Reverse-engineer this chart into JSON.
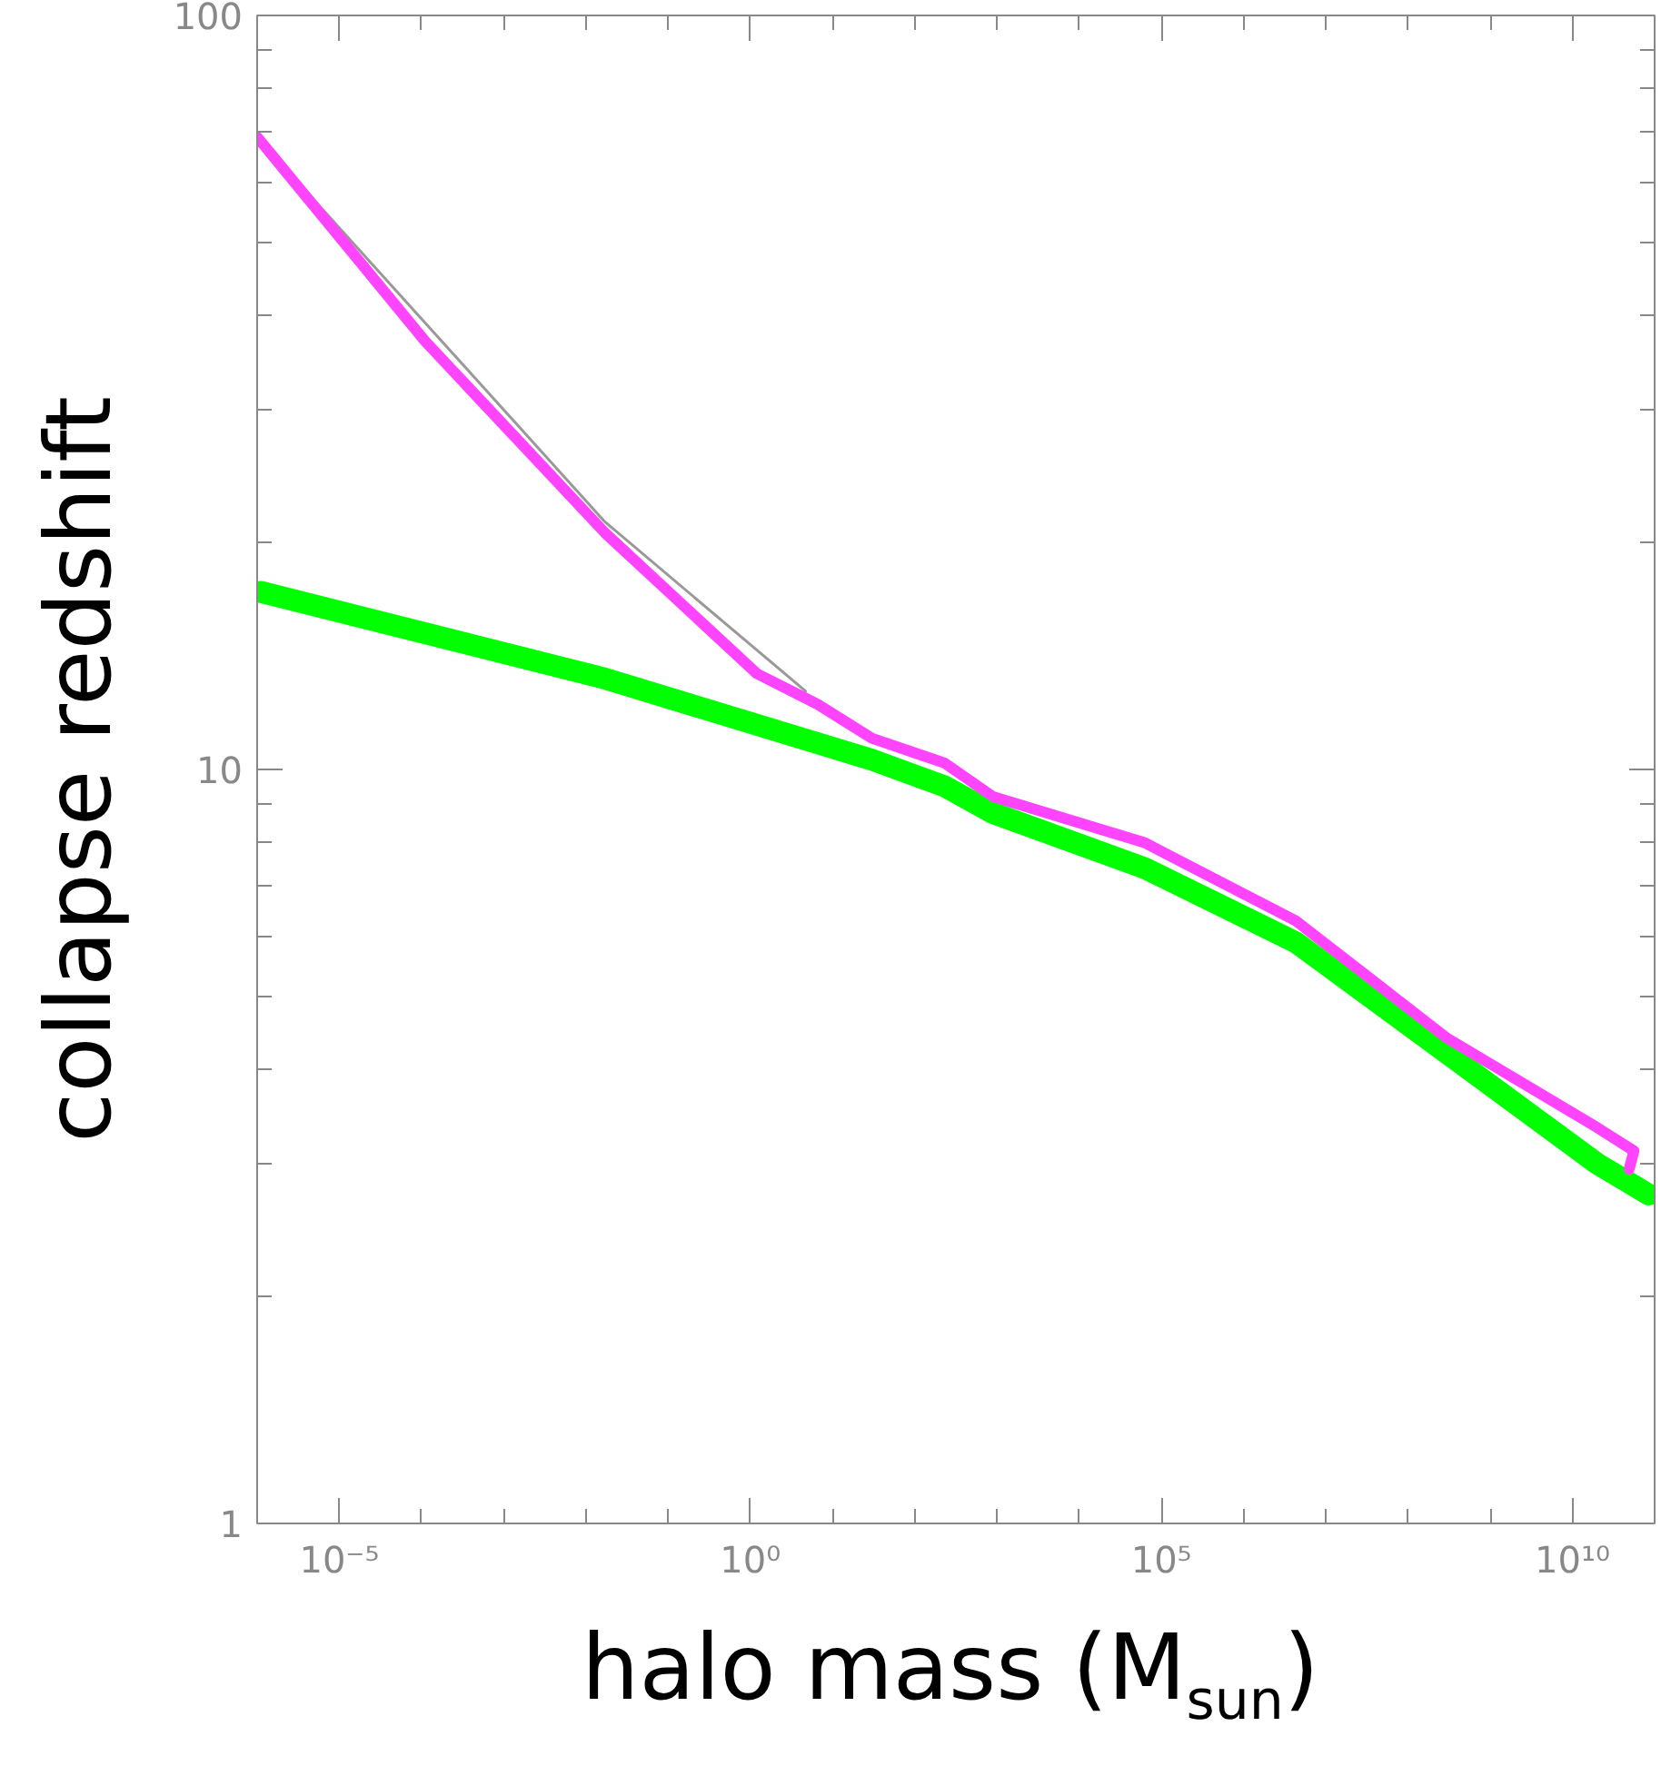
{
  "chart_data": {
    "type": "line",
    "xlabel": "halo mass (M$_{sun}$)",
    "ylabel": "collapse redshift",
    "log": "xy",
    "xlim": [
      1e-06,
      100000000000.0
    ],
    "ylim": [
      1,
      100
    ],
    "xticks": [
      {
        "value": 1e-06,
        "label": null
      },
      {
        "value": 1e-05,
        "label": "10⁻⁵"
      },
      {
        "value": 0.0001,
        "label": null
      },
      {
        "value": 0.001,
        "label": null
      },
      {
        "value": 0.01,
        "label": null
      },
      {
        "value": 0.1,
        "label": null
      },
      {
        "value": 1,
        "label": "10⁰"
      },
      {
        "value": 10,
        "label": null
      },
      {
        "value": 100,
        "label": null
      },
      {
        "value": 1000,
        "label": null
      },
      {
        "value": 10000,
        "label": null
      },
      {
        "value": 100000,
        "label": "10⁵"
      },
      {
        "value": 1000000.0,
        "label": null
      },
      {
        "value": 10000000.0,
        "label": null
      },
      {
        "value": 100000000.0,
        "label": null
      },
      {
        "value": 1000000000.0,
        "label": null
      },
      {
        "value": 10000000000.0,
        "label": "10¹⁰"
      },
      {
        "value": 100000000000.0,
        "label": null
      }
    ],
    "yticks": [
      1,
      {
        "value": 2,
        "label": null
      },
      {
        "value": 3,
        "label": null
      },
      {
        "value": 4,
        "label": null
      },
      {
        "value": 5,
        "label": null
      },
      {
        "value": 6,
        "label": null
      },
      {
        "value": 7,
        "label": null
      },
      {
        "value": 8,
        "label": null
      },
      {
        "value": 9,
        "label": null
      },
      10,
      {
        "value": 20,
        "label": null
      },
      {
        "value": 30,
        "label": null
      },
      {
        "value": 40,
        "label": null
      },
      {
        "value": 50,
        "label": null
      },
      {
        "value": 60,
        "label": null
      },
      {
        "value": 70,
        "label": null
      },
      {
        "value": 80,
        "label": null
      },
      {
        "value": 90,
        "label": null
      },
      100
    ],
    "grid": false,
    "marker": "none",
    "line_style": "solid",
    "series": [
      {
        "color": "#999999",
        "x": [
          1e-06,
          0.017,
          4.7
        ],
        "values": [
          69,
          21.3,
          12.7
        ]
      },
      {
        "color": "#00ff00",
        "x": [
          1.1e-06,
          0.017,
          30,
          230,
          900,
          62000.0,
          4300000.0,
          300000000.0,
          20000000000.0,
          85000000000.0
        ],
        "values": [
          17.2,
          13.2,
          10.3,
          9.5,
          8.75,
          7.4,
          5.9,
          4.2,
          3.0,
          2.73
        ]
      },
      {
        "color": "#ff44ff",
        "x": [
          1e-06,
          0.00011,
          0.017,
          1.2,
          6.6,
          30,
          230,
          900,
          62000.0,
          4300000.0,
          300000000.0,
          20000000000.0,
          56000000000.0,
          49000000000.0
        ],
        "values": [
          69,
          37,
          20.6,
          13.4,
          12.2,
          11.0,
          10.2,
          9.2,
          8.0,
          6.3,
          4.4,
          3.35,
          3.12,
          2.95
        ]
      }
    ]
  }
}
